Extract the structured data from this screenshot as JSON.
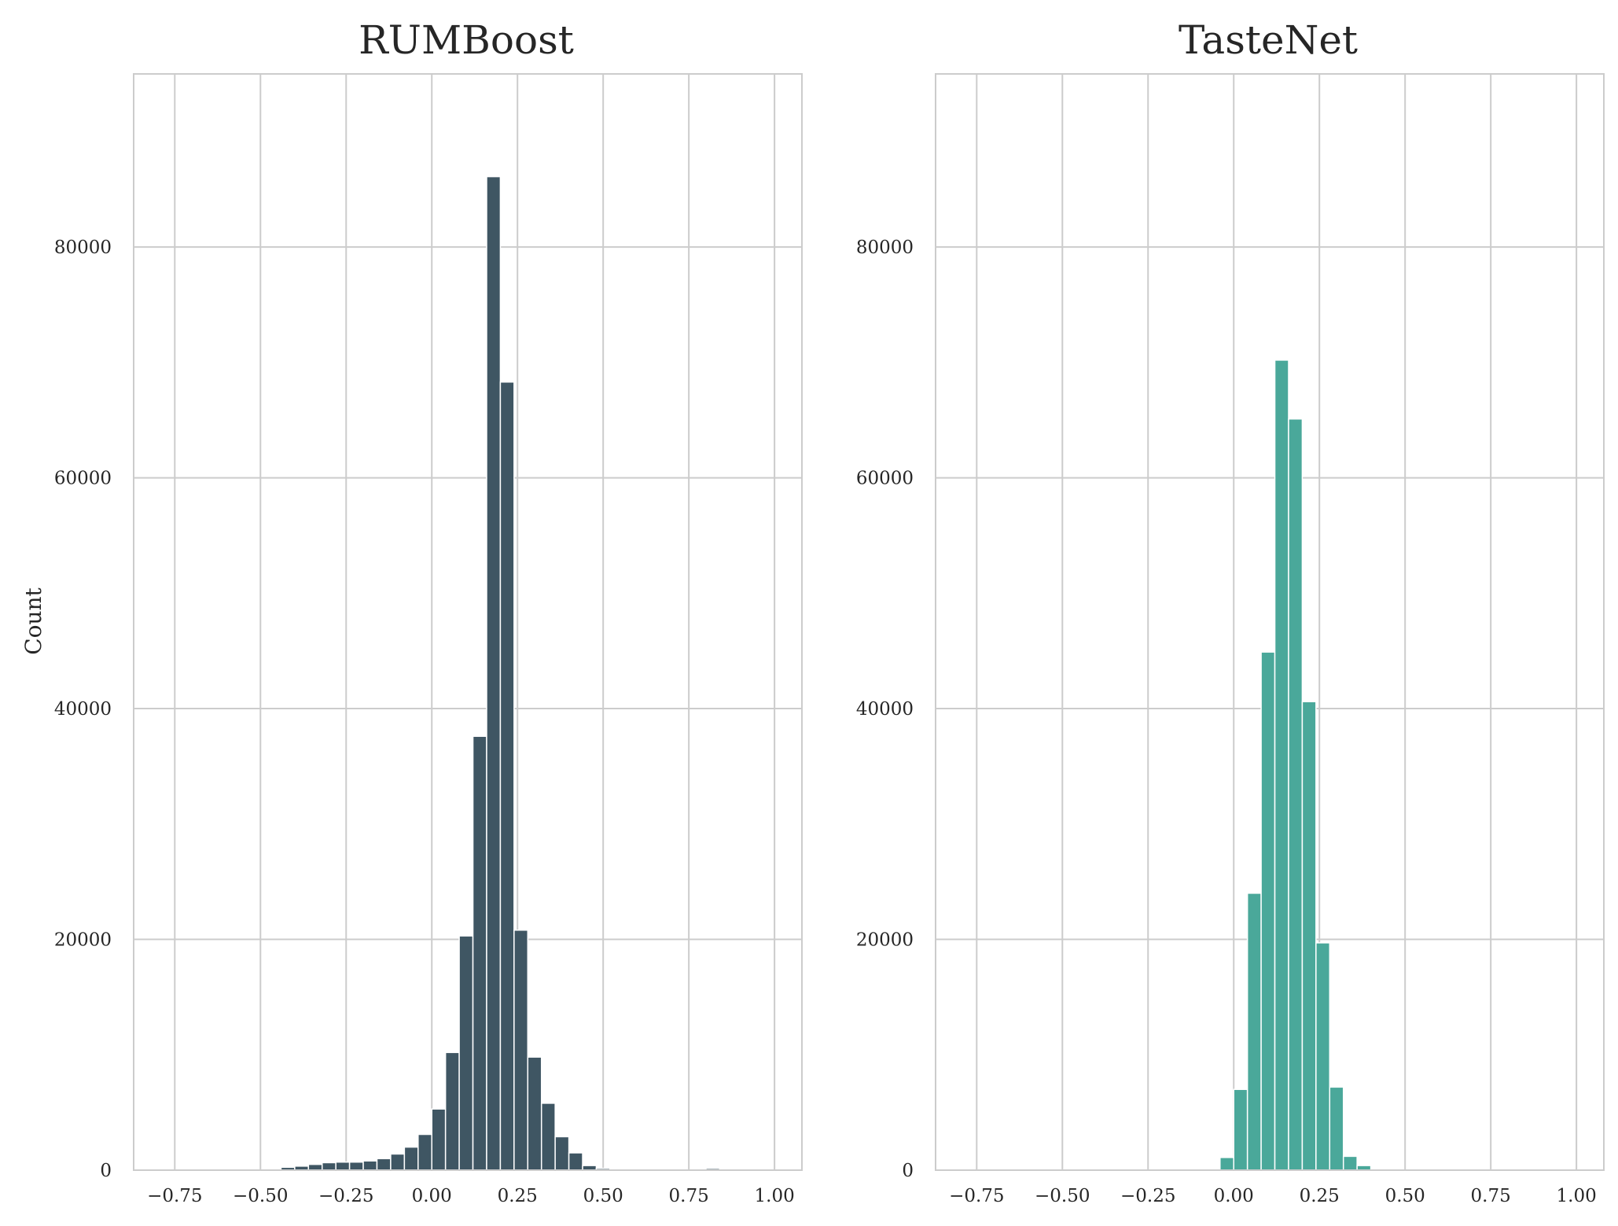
{
  "colors": {
    "rumboost": "#3f5663",
    "tastenet": "#4aa89a",
    "grid": "#cccccc",
    "text": "#262626"
  },
  "chart_data": [
    {
      "type": "bar",
      "subtype": "histogram",
      "title": "RUMBoost",
      "xlabel": "",
      "ylabel": "Count",
      "xlim": [
        -0.87,
        1.08
      ],
      "ylim": [
        0,
        95000
      ],
      "xticks": [
        -0.75,
        -0.5,
        -0.25,
        0.0,
        0.25,
        0.5,
        0.75,
        1.0
      ],
      "xtick_labels": [
        "−0.75",
        "−0.50",
        "−0.25",
        "0.00",
        "0.25",
        "0.50",
        "0.75",
        "1.00"
      ],
      "yticks": [
        0,
        20000,
        40000,
        60000,
        80000
      ],
      "ytick_labels": [
        "0",
        "20000",
        "40000",
        "60000",
        "80000"
      ],
      "grid": true,
      "color": "#3f5663",
      "bin_width": 0.04,
      "bins": [
        {
          "x": -0.46,
          "value": 50
        },
        {
          "x": -0.42,
          "value": 250
        },
        {
          "x": -0.38,
          "value": 350
        },
        {
          "x": -0.34,
          "value": 500
        },
        {
          "x": -0.3,
          "value": 650
        },
        {
          "x": -0.26,
          "value": 700
        },
        {
          "x": -0.22,
          "value": 700
        },
        {
          "x": -0.18,
          "value": 800
        },
        {
          "x": -0.14,
          "value": 1000
        },
        {
          "x": -0.1,
          "value": 1400
        },
        {
          "x": -0.06,
          "value": 2000
        },
        {
          "x": -0.02,
          "value": 3100
        },
        {
          "x": 0.02,
          "value": 5300
        },
        {
          "x": 0.06,
          "value": 10200
        },
        {
          "x": 0.1,
          "value": 20300
        },
        {
          "x": 0.14,
          "value": 37600
        },
        {
          "x": 0.18,
          "value": 86100
        },
        {
          "x": 0.22,
          "value": 68300
        },
        {
          "x": 0.26,
          "value": 20800
        },
        {
          "x": 0.3,
          "value": 9800
        },
        {
          "x": 0.34,
          "value": 5800
        },
        {
          "x": 0.38,
          "value": 2900
        },
        {
          "x": 0.42,
          "value": 1500
        },
        {
          "x": 0.46,
          "value": 400
        },
        {
          "x": 0.5,
          "value": 150
        },
        {
          "x": 0.54,
          "value": 50
        },
        {
          "x": 0.58,
          "value": 20
        },
        {
          "x": 0.62,
          "value": 20
        },
        {
          "x": 0.66,
          "value": 20
        },
        {
          "x": 0.7,
          "value": 20
        },
        {
          "x": 0.74,
          "value": 20
        },
        {
          "x": 0.78,
          "value": 20
        },
        {
          "x": 0.82,
          "value": 150
        },
        {
          "x": 0.86,
          "value": 30
        }
      ]
    },
    {
      "type": "bar",
      "subtype": "histogram",
      "title": "TasteNet",
      "xlabel": "",
      "ylabel": "",
      "xlim": [
        -0.87,
        1.08
      ],
      "ylim": [
        0,
        95000
      ],
      "xticks": [
        -0.75,
        -0.5,
        -0.25,
        0.0,
        0.25,
        0.5,
        0.75,
        1.0
      ],
      "xtick_labels": [
        "−0.75",
        "−0.50",
        "−0.25",
        "0.00",
        "0.25",
        "0.50",
        "0.75",
        "1.00"
      ],
      "yticks": [
        0,
        20000,
        40000,
        60000,
        80000
      ],
      "ytick_labels": [
        "0",
        "20000",
        "40000",
        "60000",
        "80000"
      ],
      "grid": true,
      "color": "#4aa89a",
      "bin_width": 0.04,
      "bins": [
        {
          "x": -0.02,
          "value": 1100
        },
        {
          "x": 0.02,
          "value": 7000
        },
        {
          "x": 0.06,
          "value": 24000
        },
        {
          "x": 0.1,
          "value": 44900
        },
        {
          "x": 0.14,
          "value": 70200
        },
        {
          "x": 0.18,
          "value": 65100
        },
        {
          "x": 0.22,
          "value": 40600
        },
        {
          "x": 0.26,
          "value": 19700
        },
        {
          "x": 0.3,
          "value": 7200
        },
        {
          "x": 0.34,
          "value": 1200
        },
        {
          "x": 0.38,
          "value": 400
        }
      ]
    }
  ]
}
